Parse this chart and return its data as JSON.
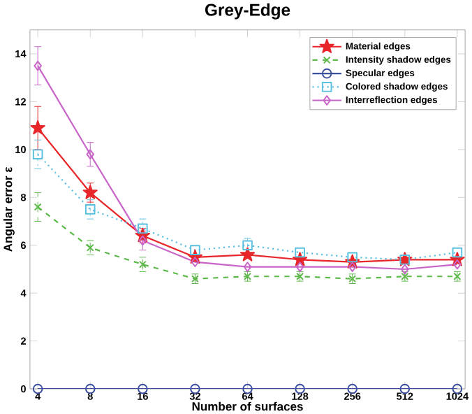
{
  "chart_data": {
    "type": "line",
    "title": "Grey-Edge",
    "xlabel": "Number of surfaces",
    "ylabel": "Angular error ε",
    "categories": [
      "4",
      "8",
      "16",
      "32",
      "64",
      "128",
      "256",
      "512",
      "1024"
    ],
    "ylim": [
      0,
      15
    ],
    "yticks": [
      0,
      2,
      4,
      6,
      8,
      10,
      12,
      14
    ],
    "grid": false,
    "legend": "top right",
    "series": [
      {
        "name": "Material edges",
        "color": "#e8262a",
        "marker": "star",
        "line_style": "solid",
        "values": [
          10.9,
          8.2,
          6.4,
          5.5,
          5.6,
          5.4,
          5.3,
          5.4,
          5.4
        ],
        "errors": [
          0.9,
          0.4,
          0.3,
          null,
          null,
          null,
          null,
          null,
          null
        ]
      },
      {
        "name": "Intensity shadow edges",
        "color": "#5cb94a",
        "marker": "cross",
        "line_style": "dashed",
        "values": [
          7.6,
          5.9,
          5.2,
          4.6,
          4.7,
          4.7,
          4.6,
          4.7,
          4.7
        ],
        "errors": [
          0.6,
          0.3,
          0.3,
          0.2,
          0.2,
          0.2,
          0.2,
          0.2,
          0.2
        ]
      },
      {
        "name": "Specular edges",
        "color": "#3a4f9e",
        "marker": "circle",
        "line_style": "solid",
        "values": [
          0,
          0,
          0,
          0,
          0,
          0,
          0,
          0,
          0
        ]
      },
      {
        "name": "Colored shadow edges",
        "color": "#5bc0e0",
        "marker": "square",
        "line_style": "dotted",
        "values": [
          9.8,
          7.5,
          6.7,
          5.8,
          6.0,
          5.7,
          5.5,
          5.4,
          5.7
        ],
        "errors": [
          0.6,
          0.4,
          0.4,
          null,
          0.3,
          null,
          null,
          null,
          null
        ]
      },
      {
        "name": "Interreflection edges",
        "color": "#c864c8",
        "marker": "diamond",
        "line_style": "solid",
        "values": [
          13.5,
          9.8,
          6.2,
          5.3,
          5.1,
          5.1,
          5.1,
          5.0,
          5.2
        ],
        "errors": [
          0.8,
          0.5,
          0.4,
          null,
          null,
          null,
          null,
          null,
          null
        ]
      }
    ]
  }
}
